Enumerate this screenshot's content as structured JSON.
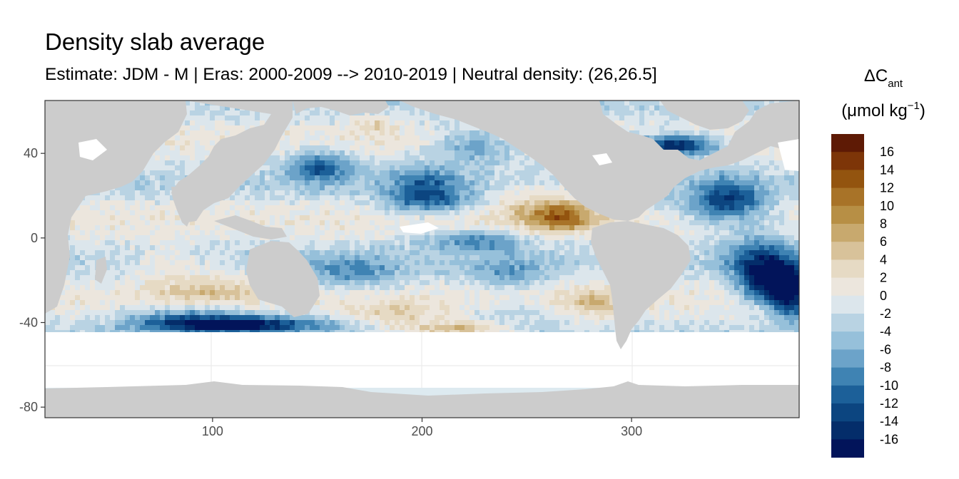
{
  "chart_data": {
    "type": "heatmap",
    "title": "Density slab average",
    "subtitle": "Estimate: JDM - M | Eras: 2000-2009 --> 2010-2019 | Neutral density: (26,26.5]",
    "xlabel": "",
    "ylabel": "",
    "xlim": [
      20,
      380
    ],
    "ylim": [
      -85,
      65
    ],
    "x_ticks": [
      100,
      200,
      300
    ],
    "y_ticks": [
      40,
      0,
      -40,
      -80
    ],
    "grid": true,
    "legend": {
      "position": "right",
      "title_symbol": "ΔC",
      "title_subscript": "ant",
      "unit": "(μmol kg",
      "unit_superscript": "−1",
      "unit_close": ")",
      "bins": [
        {
          "label": "16",
          "color": "#5e1a05"
        },
        {
          "label": "14",
          "color": "#7d3508"
        },
        {
          "label": "12",
          "color": "#93540f"
        },
        {
          "label": "10",
          "color": "#a87328"
        },
        {
          "label": "8",
          "color": "#b78f45"
        },
        {
          "label": "6",
          "color": "#c8a96e"
        },
        {
          "label": "4",
          "color": "#d8c29a"
        },
        {
          "label": "2",
          "color": "#e6dac4"
        },
        {
          "label": "0",
          "color": "#ece6dd"
        },
        {
          "label": "-2",
          "color": "#dce6ec"
        },
        {
          "label": "-4",
          "color": "#b9d3e3"
        },
        {
          "label": "-6",
          "color": "#96c0da"
        },
        {
          "label": "-8",
          "color": "#6ca3c9"
        },
        {
          "label": "-10",
          "color": "#3f83b3"
        },
        {
          "label": "-12",
          "color": "#1c6099"
        },
        {
          "label": "-14",
          "color": "#0c4580"
        },
        {
          "label": "-16",
          "color": "#042d6a"
        },
        {
          "label": "",
          "color": "#02145a"
        }
      ]
    },
    "land_color": "#cccccc",
    "no_data_color": "#ffffff"
  }
}
